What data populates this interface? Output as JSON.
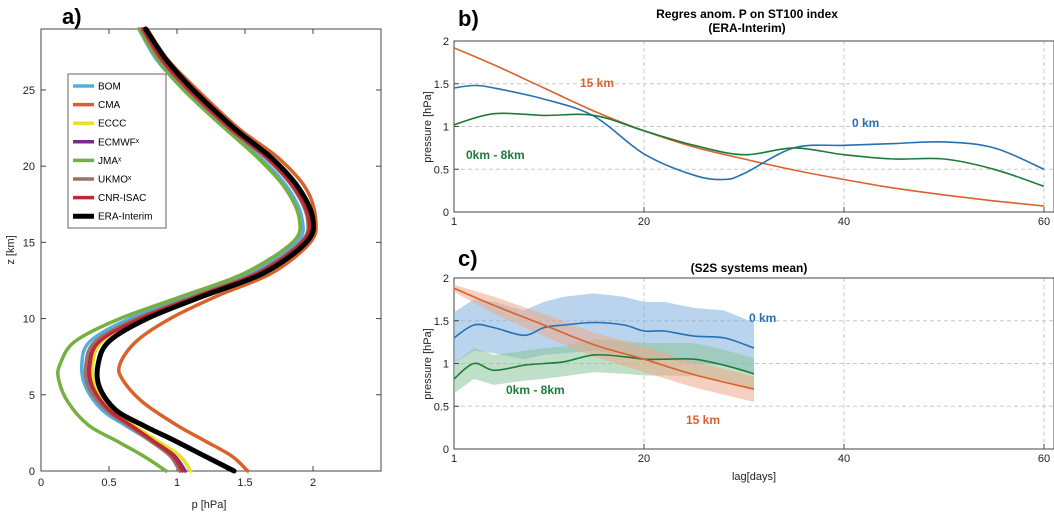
{
  "chart_data": [
    {
      "panel_label": "a)",
      "type": "line",
      "title": "",
      "xlabel": "p [hPa]",
      "ylabel": "z [km]",
      "xlim": [
        0,
        2.5
      ],
      "ylim": [
        0,
        29
      ],
      "xticks": [
        "0",
        "0.5",
        "1",
        "1.5",
        "2"
      ],
      "yticks": [
        "0",
        "5",
        "10",
        "15",
        "20",
        "25"
      ],
      "grid": false,
      "legend_position": "upper-left",
      "series": [
        {
          "name": "BOM",
          "color": "#56aee0",
          "width": 3.5,
          "points": [
            [
              0.72,
              29
            ],
            [
              0.85,
              27
            ],
            [
              1.05,
              25
            ],
            [
              1.35,
              22.5
            ],
            [
              1.62,
              20.5
            ],
            [
              1.82,
              18.5
            ],
            [
              1.92,
              16.5
            ],
            [
              1.88,
              15
            ],
            [
              1.55,
              13
            ],
            [
              1.1,
              11.5
            ],
            [
              0.65,
              10
            ],
            [
              0.36,
              8.5
            ],
            [
              0.3,
              7
            ],
            [
              0.33,
              5.5
            ],
            [
              0.45,
              4
            ],
            [
              0.62,
              3
            ],
            [
              0.8,
              2
            ],
            [
              0.95,
              1
            ],
            [
              1.02,
              0
            ]
          ]
        },
        {
          "name": "CMA",
          "color": "#d9622b",
          "width": 3.5,
          "points": [
            [
              0.78,
              29
            ],
            [
              0.93,
              27
            ],
            [
              1.15,
              25
            ],
            [
              1.45,
              22.5
            ],
            [
              1.75,
              20.5
            ],
            [
              1.95,
              18.5
            ],
            [
              2.02,
              16.5
            ],
            [
              1.98,
              15
            ],
            [
              1.7,
              13
            ],
            [
              1.3,
              11.5
            ],
            [
              0.95,
              10
            ],
            [
              0.7,
              8.5
            ],
            [
              0.58,
              7
            ],
            [
              0.6,
              6
            ],
            [
              0.75,
              4.5
            ],
            [
              1.0,
              3
            ],
            [
              1.2,
              2
            ],
            [
              1.4,
              1
            ],
            [
              1.52,
              0
            ]
          ]
        },
        {
          "name": "ECCC",
          "color": "#e8e020",
          "width": 3.5,
          "points": [
            [
              0.76,
              29
            ],
            [
              0.9,
              27
            ],
            [
              1.1,
              25
            ],
            [
              1.4,
              22.5
            ],
            [
              1.68,
              20.5
            ],
            [
              1.88,
              18.5
            ],
            [
              1.98,
              16.5
            ],
            [
              1.93,
              15
            ],
            [
              1.62,
              13
            ],
            [
              1.18,
              11.5
            ],
            [
              0.75,
              10
            ],
            [
              0.45,
              8.5
            ],
            [
              0.38,
              7
            ],
            [
              0.4,
              5.5
            ],
            [
              0.52,
              4
            ],
            [
              0.68,
              3
            ],
            [
              0.85,
              2
            ],
            [
              1.02,
              1
            ],
            [
              1.1,
              0
            ]
          ]
        },
        {
          "name": "ECMWFˣ",
          "color": "#7a2a8c",
          "width": 3.5,
          "points": [
            [
              0.75,
              29
            ],
            [
              0.9,
              27
            ],
            [
              1.1,
              25
            ],
            [
              1.4,
              22.5
            ],
            [
              1.68,
              20.5
            ],
            [
              1.88,
              18.5
            ],
            [
              1.97,
              16.5
            ],
            [
              1.92,
              15
            ],
            [
              1.6,
              13
            ],
            [
              1.15,
              11.5
            ],
            [
              0.72,
              10
            ],
            [
              0.42,
              8.5
            ],
            [
              0.35,
              7
            ],
            [
              0.37,
              5.5
            ],
            [
              0.5,
              4
            ],
            [
              0.66,
              3
            ],
            [
              0.82,
              2
            ],
            [
              0.98,
              1
            ],
            [
              1.06,
              0
            ]
          ]
        },
        {
          "name": "JMAˣ",
          "color": "#76b041",
          "width": 3.5,
          "points": [
            [
              0.72,
              29
            ],
            [
              0.86,
              27
            ],
            [
              1.05,
              25
            ],
            [
              1.35,
              22.5
            ],
            [
              1.6,
              20.5
            ],
            [
              1.8,
              18.5
            ],
            [
              1.9,
              16.5
            ],
            [
              1.85,
              15
            ],
            [
              1.5,
              13
            ],
            [
              1.05,
              11.5
            ],
            [
              0.58,
              10
            ],
            [
              0.25,
              8.5
            ],
            [
              0.14,
              7
            ],
            [
              0.13,
              6
            ],
            [
              0.2,
              4.5
            ],
            [
              0.35,
              3
            ],
            [
              0.55,
              2
            ],
            [
              0.75,
              1
            ],
            [
              0.92,
              0
            ]
          ]
        },
        {
          "name": "UKMOˣ",
          "color": "#9b7263",
          "width": 3.5,
          "points": [
            [
              0.74,
              29
            ],
            [
              0.88,
              27
            ],
            [
              1.08,
              25
            ],
            [
              1.38,
              22.5
            ],
            [
              1.66,
              20.5
            ],
            [
              1.86,
              18.5
            ],
            [
              1.96,
              16.5
            ],
            [
              1.91,
              15
            ],
            [
              1.58,
              13
            ],
            [
              1.14,
              11.5
            ],
            [
              0.7,
              10
            ],
            [
              0.4,
              8.5
            ],
            [
              0.33,
              7
            ],
            [
              0.35,
              5.5
            ],
            [
              0.48,
              4
            ],
            [
              0.64,
              3
            ],
            [
              0.8,
              2
            ],
            [
              0.95,
              1
            ],
            [
              1.02,
              0
            ]
          ]
        },
        {
          "name": "CNR-ISAC",
          "color": "#c0283a",
          "width": 3.5,
          "points": [
            [
              0.75,
              29
            ],
            [
              0.89,
              27
            ],
            [
              1.09,
              25
            ],
            [
              1.39,
              22.5
            ],
            [
              1.67,
              20.5
            ],
            [
              1.87,
              18.5
            ],
            [
              1.97,
              16.5
            ],
            [
              1.92,
              15
            ],
            [
              1.6,
              13
            ],
            [
              1.16,
              11.5
            ],
            [
              0.73,
              10
            ],
            [
              0.43,
              8.5
            ],
            [
              0.36,
              7
            ],
            [
              0.38,
              5.5
            ],
            [
              0.5,
              4
            ],
            [
              0.66,
              3
            ],
            [
              0.82,
              2
            ],
            [
              0.97,
              1
            ],
            [
              1.04,
              0
            ]
          ]
        },
        {
          "name": "ERA-Interim",
          "color": "#000000",
          "width": 5,
          "points": [
            [
              0.77,
              29
            ],
            [
              0.92,
              27
            ],
            [
              1.12,
              25
            ],
            [
              1.42,
              22.5
            ],
            [
              1.7,
              20.5
            ],
            [
              1.9,
              18.5
            ],
            [
              2.0,
              16.5
            ],
            [
              1.95,
              15
            ],
            [
              1.64,
              13
            ],
            [
              1.2,
              11.5
            ],
            [
              0.78,
              10
            ],
            [
              0.5,
              8.5
            ],
            [
              0.42,
              7
            ],
            [
              0.43,
              5.5
            ],
            [
              0.55,
              4
            ],
            [
              0.75,
              3
            ],
            [
              0.98,
              2
            ],
            [
              1.2,
              1
            ],
            [
              1.42,
              0
            ]
          ]
        }
      ]
    },
    {
      "panel_label": "b)",
      "type": "line",
      "title": "Regres anom. P on ST100 index",
      "subtitle": "(ERA-Interim)",
      "xlabel": "",
      "ylabel": "pressure [hPa]",
      "xlim": [
        1,
        61
      ],
      "ylim": [
        0,
        2
      ],
      "xticks": [
        "1",
        "20",
        "40",
        "60"
      ],
      "yticks": [
        "0",
        "0.5",
        "1",
        "1.5",
        "2"
      ],
      "grid": true,
      "series": [
        {
          "name": "15 km",
          "color": "#d9622b",
          "x": [
            1,
            5,
            10,
            15,
            20,
            25,
            30,
            35,
            40,
            45,
            50,
            55,
            60
          ],
          "y": [
            1.92,
            1.72,
            1.45,
            1.18,
            0.95,
            0.76,
            0.62,
            0.49,
            0.38,
            0.28,
            0.2,
            0.13,
            0.07
          ]
        },
        {
          "name": "0 km",
          "color": "#2471b5",
          "x": [
            1,
            3,
            5,
            10,
            15,
            20,
            25,
            28,
            30,
            35,
            40,
            45,
            50,
            55,
            60
          ],
          "y": [
            1.45,
            1.48,
            1.45,
            1.32,
            1.12,
            0.68,
            0.43,
            0.38,
            0.45,
            0.75,
            0.78,
            0.8,
            0.82,
            0.75,
            0.5
          ]
        },
        {
          "name": "0km - 8km",
          "color": "#1e7b3a",
          "x": [
            1,
            5,
            10,
            15,
            20,
            25,
            30,
            35,
            40,
            45,
            50,
            55,
            60
          ],
          "y": [
            1.02,
            1.15,
            1.13,
            1.13,
            0.95,
            0.78,
            0.67,
            0.75,
            0.67,
            0.62,
            0.62,
            0.5,
            0.3
          ]
        }
      ],
      "annotations": [
        {
          "text": "15 km",
          "color": "#d9622b"
        },
        {
          "text": "0 km",
          "color": "#2471b5"
        },
        {
          "text": "0km - 8km",
          "color": "#1e7b3a"
        }
      ]
    },
    {
      "panel_label": "c)",
      "type": "area",
      "title": "(S2S systems mean)",
      "xlabel": "lag[days]",
      "ylabel": "pressure [hPa]",
      "xlim": [
        1,
        61
      ],
      "ylim": [
        0,
        2
      ],
      "xticks": [
        "1",
        "20",
        "40",
        "60"
      ],
      "yticks": [
        "0",
        "0.5",
        "1",
        "1.5",
        "2"
      ],
      "grid": true,
      "series": [
        {
          "name": "0 km",
          "color": "#2471b5",
          "band_color": "#7fb1dc",
          "x": [
            1,
            3,
            5,
            8,
            10,
            12,
            15,
            18,
            20,
            22,
            25,
            28,
            31
          ],
          "y": [
            1.3,
            1.45,
            1.42,
            1.33,
            1.42,
            1.45,
            1.48,
            1.45,
            1.38,
            1.38,
            1.32,
            1.3,
            1.18
          ],
          "lower": [
            1.0,
            1.15,
            1.12,
            1.05,
            1.1,
            1.12,
            1.15,
            1.1,
            1.05,
            1.05,
            1.0,
            0.98,
            0.88
          ],
          "upper": [
            1.6,
            1.75,
            1.72,
            1.62,
            1.72,
            1.78,
            1.82,
            1.78,
            1.72,
            1.72,
            1.65,
            1.62,
            1.48
          ]
        },
        {
          "name": "0km - 8km",
          "color": "#1e7b3a",
          "band_color": "#8cc49a",
          "x": [
            1,
            3,
            5,
            8,
            10,
            12,
            15,
            18,
            20,
            22,
            25,
            28,
            31
          ],
          "y": [
            0.82,
            1.0,
            0.92,
            0.98,
            1.0,
            1.02,
            1.1,
            1.08,
            1.05,
            1.05,
            1.05,
            0.98,
            0.88
          ],
          "lower": [
            0.65,
            0.82,
            0.75,
            0.8,
            0.82,
            0.85,
            0.9,
            0.88,
            0.86,
            0.86,
            0.85,
            0.8,
            0.7
          ],
          "upper": [
            1.0,
            1.18,
            1.1,
            1.15,
            1.18,
            1.2,
            1.28,
            1.26,
            1.24,
            1.24,
            1.24,
            1.16,
            1.06
          ]
        },
        {
          "name": "15 km",
          "color": "#d9622b",
          "band_color": "#eda88a",
          "x": [
            1,
            5,
            10,
            15,
            20,
            25,
            31
          ],
          "y": [
            1.88,
            1.68,
            1.45,
            1.22,
            1.05,
            0.87,
            0.7
          ],
          "lower": [
            1.84,
            1.58,
            1.32,
            1.08,
            0.9,
            0.72,
            0.55
          ],
          "upper": [
            1.92,
            1.78,
            1.58,
            1.36,
            1.2,
            1.02,
            0.85
          ]
        }
      ],
      "annotations": [
        {
          "text": "0 km",
          "color": "#2471b5"
        },
        {
          "text": "0km - 8km",
          "color": "#1e7b3a"
        },
        {
          "text": "15 km",
          "color": "#d9622b"
        }
      ]
    }
  ]
}
